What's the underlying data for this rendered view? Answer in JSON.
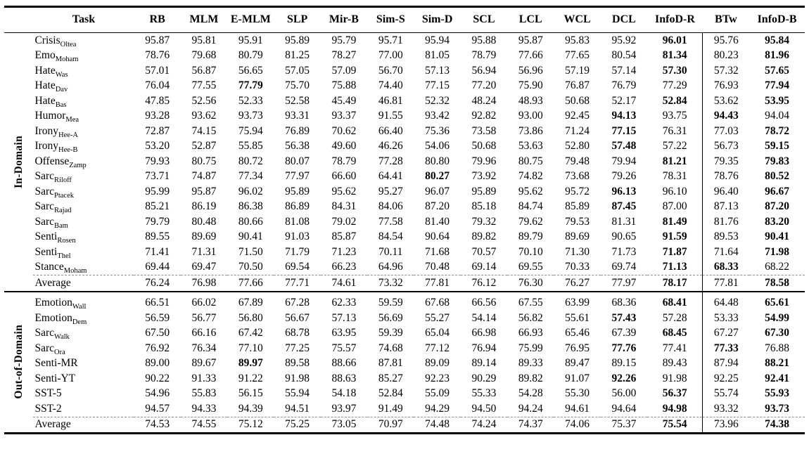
{
  "table": {
    "columns": [
      "Task",
      "RB",
      "MLM",
      "E-MLM",
      "SLP",
      "Mir-B",
      "Sim-S",
      "Sim-D",
      "SCL",
      "LCL",
      "WCL",
      "DCL",
      "InfoD-R",
      "BTw",
      "InfoD-B"
    ],
    "divider_before_value_index": 12,
    "sections": [
      {
        "label": "In-Domain",
        "rows": [
          {
            "task": "Crisis",
            "sub": "Oltea",
            "values": [
              "95.87",
              "95.81",
              "95.91",
              "95.89",
              "95.79",
              "95.71",
              "95.94",
              "95.88",
              "95.87",
              "95.83",
              "95.92",
              "96.01",
              "95.76",
              "95.84"
            ],
            "bold": [
              11,
              13
            ],
            "average": false
          },
          {
            "task": "Emo",
            "sub": "Moham",
            "values": [
              "78.76",
              "79.68",
              "80.79",
              "81.25",
              "78.27",
              "77.00",
              "81.05",
              "78.79",
              "77.66",
              "77.65",
              "80.54",
              "81.34",
              "80.23",
              "81.96"
            ],
            "bold": [
              11,
              13
            ],
            "average": false
          },
          {
            "task": "Hate",
            "sub": "Was",
            "values": [
              "57.01",
              "56.87",
              "56.65",
              "57.05",
              "57.09",
              "56.70",
              "57.13",
              "56.94",
              "56.96",
              "57.19",
              "57.14",
              "57.30",
              "57.32",
              "57.65"
            ],
            "bold": [
              11,
              13
            ],
            "average": false
          },
          {
            "task": "Hate",
            "sub": "Dav",
            "values": [
              "76.04",
              "77.55",
              "77.79",
              "75.70",
              "75.88",
              "74.40",
              "77.15",
              "77.20",
              "75.90",
              "76.87",
              "76.79",
              "77.29",
              "76.93",
              "77.94"
            ],
            "bold": [
              2,
              13
            ],
            "average": false
          },
          {
            "task": "Hate",
            "sub": "Bas",
            "values": [
              "47.85",
              "52.56",
              "52.33",
              "52.58",
              "45.49",
              "46.81",
              "52.32",
              "48.24",
              "48.93",
              "50.68",
              "52.17",
              "52.84",
              "53.62",
              "53.95"
            ],
            "bold": [
              11,
              13
            ],
            "average": false
          },
          {
            "task": "Humor",
            "sub": "Mea",
            "values": [
              "93.28",
              "93.62",
              "93.73",
              "93.31",
              "93.37",
              "91.55",
              "93.42",
              "92.82",
              "93.00",
              "92.45",
              "94.13",
              "93.75",
              "94.43",
              "94.04"
            ],
            "bold": [
              10,
              12
            ],
            "average": false
          },
          {
            "task": "Irony",
            "sub": "Hee-A",
            "values": [
              "72.87",
              "74.15",
              "75.94",
              "76.89",
              "70.62",
              "66.40",
              "75.36",
              "73.58",
              "73.86",
              "71.24",
              "77.15",
              "76.31",
              "77.03",
              "78.72"
            ],
            "bold": [
              10,
              13
            ],
            "average": false
          },
          {
            "task": "Irony",
            "sub": "Hee-B",
            "values": [
              "53.20",
              "52.87",
              "55.85",
              "56.38",
              "49.60",
              "46.26",
              "54.06",
              "50.68",
              "53.63",
              "52.80",
              "57.48",
              "57.22",
              "56.73",
              "59.15"
            ],
            "bold": [
              10,
              13
            ],
            "average": false
          },
          {
            "task": "Offense",
            "sub": "Zamp",
            "values": [
              "79.93",
              "80.75",
              "80.72",
              "80.07",
              "78.79",
              "77.28",
              "80.80",
              "79.96",
              "80.75",
              "79.48",
              "79.94",
              "81.21",
              "79.35",
              "79.83"
            ],
            "bold": [
              11,
              13
            ],
            "average": false
          },
          {
            "task": "Sarc",
            "sub": "Riloff",
            "values": [
              "73.71",
              "74.87",
              "77.34",
              "77.97",
              "66.60",
              "64.41",
              "80.27",
              "73.92",
              "74.82",
              "73.68",
              "79.26",
              "78.31",
              "78.76",
              "80.52"
            ],
            "bold": [
              6,
              13
            ],
            "average": false
          },
          {
            "task": "Sarc",
            "sub": "Ptacek",
            "values": [
              "95.99",
              "95.87",
              "96.02",
              "95.89",
              "95.62",
              "95.27",
              "96.07",
              "95.89",
              "95.62",
              "95.72",
              "96.13",
              "96.10",
              "96.40",
              "96.67"
            ],
            "bold": [
              10,
              13
            ],
            "average": false
          },
          {
            "task": "Sarc",
            "sub": "Rajad",
            "values": [
              "85.21",
              "86.19",
              "86.38",
              "86.89",
              "84.31",
              "84.06",
              "87.20",
              "85.18",
              "84.74",
              "85.89",
              "87.45",
              "87.00",
              "87.13",
              "87.20"
            ],
            "bold": [
              10,
              13
            ],
            "average": false
          },
          {
            "task": "Sarc",
            "sub": "Bam",
            "values": [
              "79.79",
              "80.48",
              "80.66",
              "81.08",
              "79.02",
              "77.58",
              "81.40",
              "79.32",
              "79.62",
              "79.53",
              "81.31",
              "81.49",
              "81.76",
              "83.20"
            ],
            "bold": [
              11,
              13
            ],
            "average": false
          },
          {
            "task": "Senti",
            "sub": "Rosen",
            "values": [
              "89.55",
              "89.69",
              "90.41",
              "91.03",
              "85.87",
              "84.54",
              "90.64",
              "89.82",
              "89.79",
              "89.69",
              "90.65",
              "91.59",
              "89.53",
              "90.41"
            ],
            "bold": [
              11,
              13
            ],
            "average": false
          },
          {
            "task": "Senti",
            "sub": "Thel",
            "values": [
              "71.41",
              "71.31",
              "71.50",
              "71.79",
              "71.23",
              "70.11",
              "71.68",
              "70.57",
              "70.10",
              "71.30",
              "71.73",
              "71.87",
              "71.64",
              "71.98"
            ],
            "bold": [
              11,
              13
            ],
            "average": false
          },
          {
            "task": "Stance",
            "sub": "Moham",
            "values": [
              "69.44",
              "69.47",
              "70.50",
              "69.54",
              "66.23",
              "64.96",
              "70.48",
              "69.14",
              "69.55",
              "70.33",
              "69.74",
              "71.13",
              "68.33",
              "68.22"
            ],
            "bold": [
              11,
              12
            ],
            "average": false
          },
          {
            "task": "Average",
            "sub": "",
            "values": [
              "76.24",
              "76.98",
              "77.66",
              "77.71",
              "74.61",
              "73.32",
              "77.81",
              "76.12",
              "76.30",
              "76.27",
              "77.97",
              "78.17",
              "77.81",
              "78.58"
            ],
            "bold": [
              11,
              13
            ],
            "average": true
          }
        ]
      },
      {
        "label": "Out-of-Domain",
        "rows": [
          {
            "task": "Emotion",
            "sub": "Wall",
            "values": [
              "66.51",
              "66.02",
              "67.89",
              "67.28",
              "62.33",
              "59.59",
              "67.68",
              "66.56",
              "67.55",
              "63.99",
              "68.36",
              "68.41",
              "64.48",
              "65.61"
            ],
            "bold": [
              11,
              13
            ],
            "average": false
          },
          {
            "task": "Emotion",
            "sub": "Dem",
            "values": [
              "56.59",
              "56.77",
              "56.80",
              "56.67",
              "57.13",
              "56.69",
              "55.27",
              "54.14",
              "56.82",
              "55.61",
              "57.43",
              "57.28",
              "53.33",
              "54.99"
            ],
            "bold": [
              10,
              13
            ],
            "average": false
          },
          {
            "task": "Sarc",
            "sub": "Walk",
            "values": [
              "67.50",
              "66.16",
              "67.42",
              "68.78",
              "63.95",
              "59.39",
              "65.04",
              "66.98",
              "66.93",
              "65.46",
              "67.39",
              "68.45",
              "67.27",
              "67.30"
            ],
            "bold": [
              11,
              13
            ],
            "average": false
          },
          {
            "task": "Sarc",
            "sub": "Ora",
            "values": [
              "76.92",
              "76.34",
              "77.10",
              "77.25",
              "75.57",
              "74.68",
              "77.12",
              "76.94",
              "75.99",
              "76.95",
              "77.76",
              "77.41",
              "77.33",
              "76.88"
            ],
            "bold": [
              10,
              12
            ],
            "average": false
          },
          {
            "task": "Senti-MR",
            "sub": "",
            "values": [
              "89.00",
              "89.67",
              "89.97",
              "89.58",
              "88.66",
              "87.81",
              "89.09",
              "89.14",
              "89.33",
              "89.47",
              "89.15",
              "89.43",
              "87.94",
              "88.21"
            ],
            "bold": [
              2,
              13
            ],
            "average": false
          },
          {
            "task": "Senti-YT",
            "sub": "",
            "values": [
              "90.22",
              "91.33",
              "91.22",
              "91.98",
              "88.63",
              "85.27",
              "92.23",
              "90.29",
              "89.82",
              "91.07",
              "92.26",
              "91.98",
              "92.25",
              "92.41"
            ],
            "bold": [
              10,
              13
            ],
            "average": false
          },
          {
            "task": "SST-5",
            "sub": "",
            "values": [
              "54.96",
              "55.83",
              "56.15",
              "55.94",
              "54.18",
              "52.84",
              "55.09",
              "55.33",
              "54.28",
              "55.30",
              "56.00",
              "56.37",
              "55.74",
              "55.93"
            ],
            "bold": [
              11,
              13
            ],
            "average": false
          },
          {
            "task": "SST-2",
            "sub": "",
            "values": [
              "94.57",
              "94.33",
              "94.39",
              "94.51",
              "93.97",
              "91.49",
              "94.29",
              "94.50",
              "94.24",
              "94.61",
              "94.64",
              "94.98",
              "93.32",
              "93.73"
            ],
            "bold": [
              11,
              13
            ],
            "average": false
          },
          {
            "task": "Average",
            "sub": "",
            "values": [
              "74.53",
              "74.55",
              "75.12",
              "75.25",
              "73.05",
              "70.97",
              "74.48",
              "74.24",
              "74.37",
              "74.06",
              "75.37",
              "75.54",
              "73.96",
              "74.38"
            ],
            "bold": [
              11,
              13
            ],
            "average": true
          }
        ]
      }
    ]
  }
}
